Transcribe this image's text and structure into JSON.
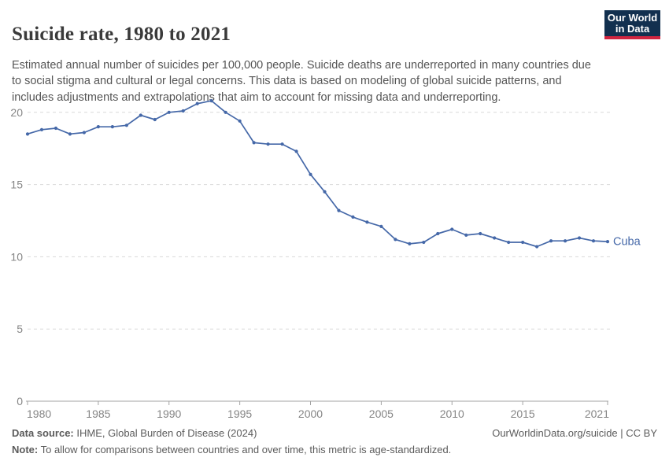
{
  "header": {
    "title": "Suicide rate, 1980 to 2021",
    "subtitle": "Estimated annual number of suicides per 100,000 people. Suicide deaths are underreported in many countries due to social stigma and cultural or legal concerns. This data is based on modeling of global suicide patterns, and includes adjustments and extrapolations that aim to account for missing data and underreporting.",
    "logo_line1": "Our World",
    "logo_line2": "in Data"
  },
  "chart_data": {
    "type": "line",
    "title": "Suicide rate, 1980 to 2021",
    "xlabel": "",
    "ylabel": "",
    "entity_label": "Cuba",
    "legend_position": "end-of-line",
    "grid": "horizontal-dashed",
    "ylim": [
      0,
      21.6
    ],
    "yticks": [
      0,
      5,
      10,
      15,
      20
    ],
    "xticks": [
      1980,
      1985,
      1990,
      1995,
      2000,
      2005,
      2010,
      2015,
      2021
    ],
    "x_range": [
      1980,
      2021
    ],
    "series": [
      {
        "name": "Cuba",
        "color": "#4568a8",
        "x": [
          1980,
          1981,
          1982,
          1983,
          1984,
          1985,
          1986,
          1987,
          1988,
          1989,
          1990,
          1991,
          1992,
          1993,
          1994,
          1995,
          1996,
          1997,
          1998,
          1999,
          2000,
          2001,
          2002,
          2003,
          2004,
          2005,
          2006,
          2007,
          2008,
          2009,
          2010,
          2011,
          2012,
          2013,
          2014,
          2015,
          2016,
          2017,
          2018,
          2019,
          2020,
          2021
        ],
        "values": [
          18.5,
          18.8,
          18.9,
          18.5,
          18.6,
          19.0,
          19.0,
          19.1,
          19.8,
          19.5,
          20.0,
          20.1,
          20.6,
          20.8,
          20.0,
          19.4,
          17.9,
          17.8,
          17.8,
          17.3,
          15.7,
          14.5,
          13.2,
          12.75,
          12.4,
          12.1,
          11.2,
          10.9,
          11.0,
          11.6,
          11.9,
          11.5,
          11.6,
          11.3,
          11.0,
          11.0,
          10.7,
          11.1,
          11.1,
          11.3,
          11.1,
          11.05
        ]
      }
    ]
  },
  "colors": {
    "accent_blue": "#4568a8",
    "logo_bg": "#12304f",
    "logo_stripe": "#d02540",
    "title_text": "#3a3a3a",
    "subtitle_text": "#555555",
    "axis_text": "#858585",
    "gridline": "#d9d9d9",
    "axis_line": "#a3a3a3",
    "footer_text": "#5b5b5b"
  },
  "footer": {
    "datasource_label": "Data source:",
    "datasource_value": " IHME, Global Burden of Disease (2024)",
    "note_label": "Note:",
    "note_value": " To allow for comparisons between countries and over time, this metric is age-standardized.",
    "citation": "OurWorldinData.org/suicide | CC BY"
  }
}
